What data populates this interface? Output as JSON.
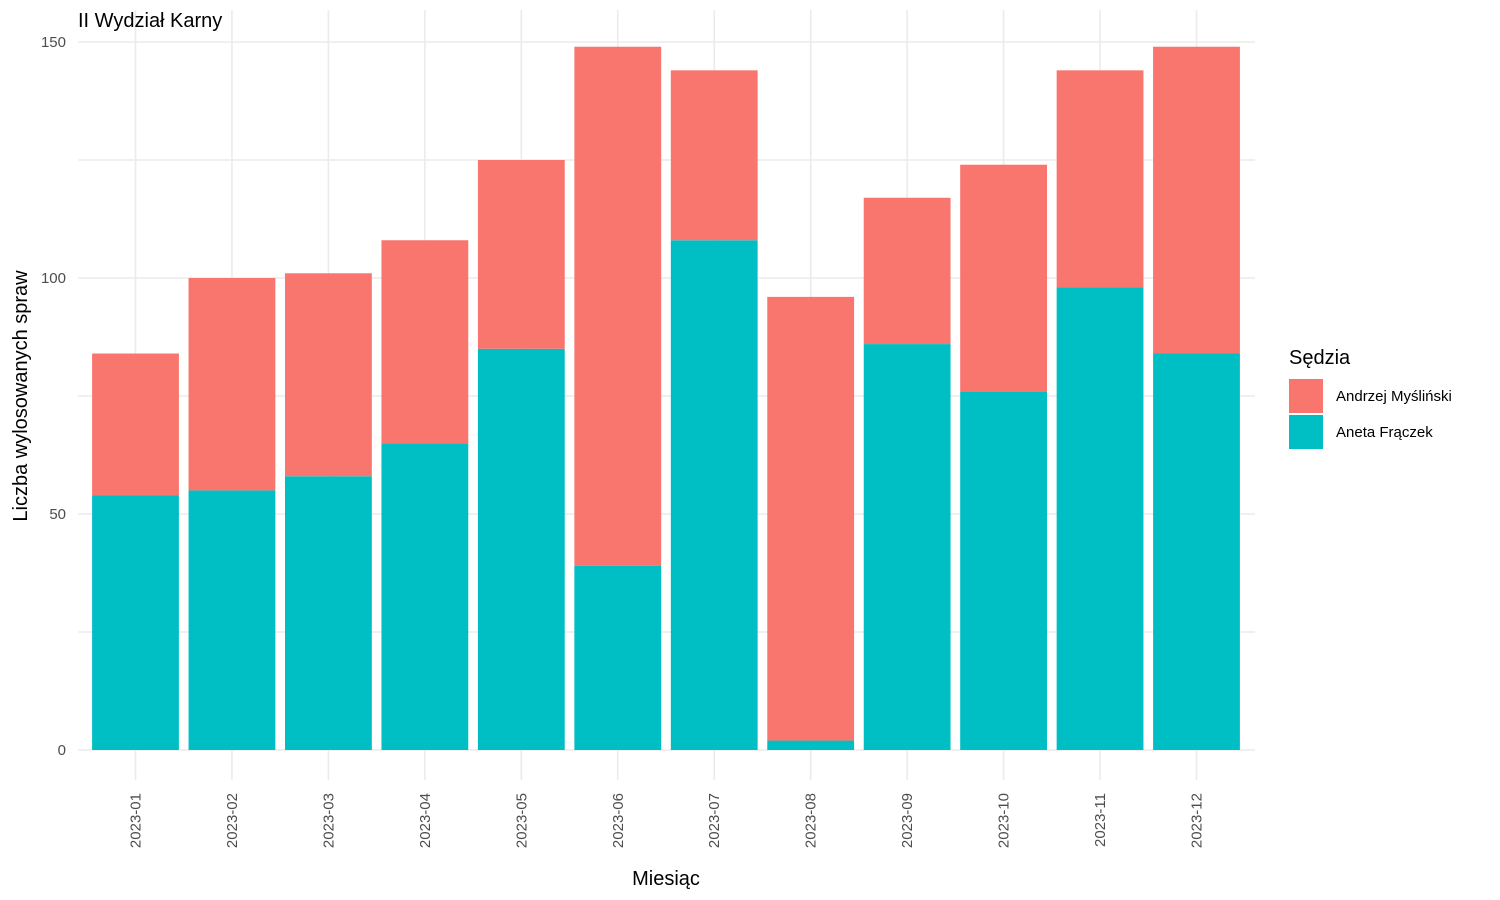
{
  "chart_data": {
    "type": "bar",
    "stacked": true,
    "title": "II Wydział Karny",
    "xlabel": "Miesiąc",
    "ylabel": "Liczba wylosowanych spraw",
    "ylim": [
      0,
      150
    ],
    "yticks": [
      0,
      50,
      100,
      150
    ],
    "grid": true,
    "legend_position": "right",
    "legend_title": "Sędzia",
    "categories": [
      "2023-01",
      "2023-02",
      "2023-03",
      "2023-04",
      "2023-05",
      "2023-06",
      "2023-07",
      "2023-08",
      "2023-09",
      "2023-10",
      "2023-11",
      "2023-12"
    ],
    "series": [
      {
        "name": "Aneta Frączek",
        "color": "#00BFC4",
        "values": [
          54,
          55,
          58,
          65,
          85,
          39,
          108,
          2,
          86,
          76,
          98,
          84
        ]
      },
      {
        "name": "Andrzej Myśliński",
        "color": "#F8766D",
        "values": [
          30,
          45,
          43,
          43,
          40,
          110,
          36,
          94,
          31,
          48,
          46,
          65
        ]
      }
    ],
    "legend_order": [
      "Andrzej Myśliński",
      "Aneta Frączek"
    ]
  }
}
